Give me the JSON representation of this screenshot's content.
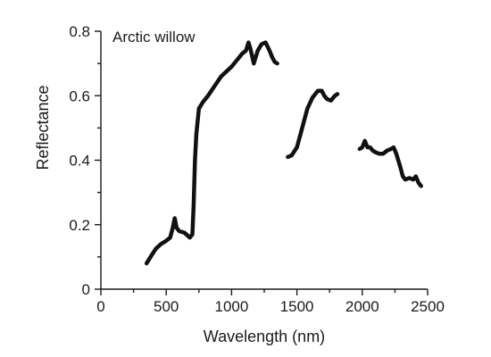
{
  "chart_data": {
    "type": "line",
    "title": "",
    "annotation": "Arctic willow",
    "xlabel": "Wavelength (nm)",
    "ylabel": "Reflectance",
    "xlim": [
      0,
      2500
    ],
    "ylim": [
      0,
      0.8
    ],
    "xticks_major": [
      0,
      500,
      1000,
      1500,
      2000,
      2500
    ],
    "xticks_minor": [
      250,
      750,
      1250,
      1750,
      2250
    ],
    "yticks_major": [
      0,
      0.2,
      0.4,
      0.6,
      0.8
    ],
    "yticks_minor": [
      0.1,
      0.3,
      0.5,
      0.7
    ],
    "grid": false,
    "line_color": "#111111",
    "segments": [
      {
        "x": [
          350,
          380,
          420,
          460,
          500,
          530,
          550,
          565,
          580,
          600,
          640,
          680,
          700,
          710,
          720,
          730,
          750,
          780,
          820,
          870,
          920,
          960,
          1000,
          1040,
          1080,
          1110,
          1130,
          1145,
          1170,
          1200,
          1230,
          1260,
          1290,
          1310,
          1330,
          1350
        ],
        "y": [
          0.08,
          0.1,
          0.125,
          0.14,
          0.15,
          0.16,
          0.19,
          0.22,
          0.19,
          0.18,
          0.175,
          0.16,
          0.17,
          0.26,
          0.4,
          0.48,
          0.56,
          0.58,
          0.6,
          0.63,
          0.66,
          0.675,
          0.69,
          0.71,
          0.73,
          0.74,
          0.765,
          0.745,
          0.7,
          0.74,
          0.76,
          0.765,
          0.74,
          0.72,
          0.705,
          0.7
        ]
      },
      {
        "x": [
          1430,
          1460,
          1500,
          1540,
          1580,
          1620,
          1660,
          1690,
          1710,
          1730,
          1760,
          1790,
          1810
        ],
        "y": [
          0.41,
          0.415,
          0.44,
          0.5,
          0.56,
          0.595,
          0.615,
          0.615,
          0.6,
          0.59,
          0.585,
          0.6,
          0.605
        ]
      },
      {
        "x": [
          1980,
          2000,
          2020,
          2040,
          2060,
          2080,
          2100,
          2130,
          2160,
          2190,
          2220,
          2240,
          2260,
          2290,
          2310,
          2330,
          2360,
          2390,
          2410,
          2430,
          2450
        ],
        "y": [
          0.435,
          0.44,
          0.46,
          0.44,
          0.44,
          0.43,
          0.425,
          0.42,
          0.42,
          0.43,
          0.435,
          0.44,
          0.42,
          0.38,
          0.35,
          0.34,
          0.345,
          0.34,
          0.35,
          0.33,
          0.32
        ]
      }
    ]
  }
}
